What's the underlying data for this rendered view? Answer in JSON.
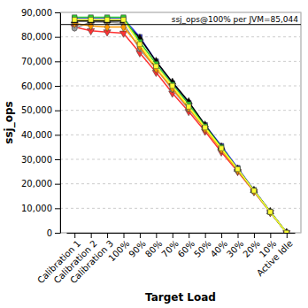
{
  "chart_data": {
    "type": "line",
    "x_label": "Target Load",
    "y_label": "ssj_ops",
    "categories": [
      "Calibration 1",
      "Calibration 2",
      "Calibration 3",
      "100%",
      "90%",
      "80%",
      "70%",
      "60%",
      "50%",
      "40%",
      "30%",
      "20%",
      "10%",
      "Active Idle"
    ],
    "series": [
      {
        "color": "#ff3333",
        "marker": "triangle-down",
        "values": [
          84000,
          82500,
          82000,
          81500,
          73500,
          65500,
          57000,
          49500,
          41500,
          33000,
          25000,
          16800,
          8300,
          0
        ]
      },
      {
        "color": "#999999",
        "marker": "circle",
        "values": [
          83500,
          86000,
          86000,
          85500,
          75000,
          67000,
          58500,
          50500,
          42500,
          34000,
          25500,
          17000,
          8400,
          0
        ]
      },
      {
        "color": "#ff9900",
        "marker": "diamond",
        "values": [
          85500,
          84500,
          84000,
          84000,
          76000,
          67000,
          59000,
          51000,
          42500,
          34000,
          25500,
          17000,
          8500,
          0
        ]
      },
      {
        "color": "#3333ff",
        "marker": "square",
        "values": [
          87500,
          87500,
          87500,
          87500,
          80000,
          70000,
          61000,
          53000,
          44000,
          35500,
          26500,
          17500,
          8600,
          0
        ]
      },
      {
        "color": "#000000",
        "marker": "triangle",
        "values": [
          86500,
          86500,
          86500,
          86500,
          79500,
          70000,
          61500,
          53500,
          44000,
          35000,
          26000,
          17300,
          8600,
          0
        ]
      },
      {
        "color": "#33cc33",
        "marker": "square",
        "values": [
          88000,
          88000,
          88000,
          88000,
          78000,
          69000,
          60500,
          52500,
          43500,
          35000,
          26000,
          17300,
          8500,
          0
        ]
      },
      {
        "color": "#ffff33",
        "marker": "square",
        "values": [
          87000,
          87000,
          87000,
          87000,
          77000,
          68000,
          60000,
          51500,
          43000,
          34500,
          26000,
          17200,
          8500,
          0
        ]
      }
    ],
    "ylim": [
      0,
      90000
    ],
    "yticks": [
      0,
      {
        "value": 10000,
        "label": "10,000"
      },
      {
        "value": 20000,
        "label": "20,000"
      },
      {
        "value": 30000,
        "label": "30,000"
      },
      {
        "value": 40000,
        "label": "40,000"
      },
      {
        "value": 50000,
        "label": "50,000"
      },
      {
        "value": 60000,
        "label": "60,000"
      },
      {
        "value": 70000,
        "label": "70,000"
      },
      {
        "value": 80000,
        "label": "80,000"
      },
      {
        "value": 90000,
        "label": "90,000"
      }
    ],
    "annotations": [
      {
        "text": "ssj_ops@100% per JVM=85,044",
        "y": 85044
      }
    ],
    "grid": true
  }
}
